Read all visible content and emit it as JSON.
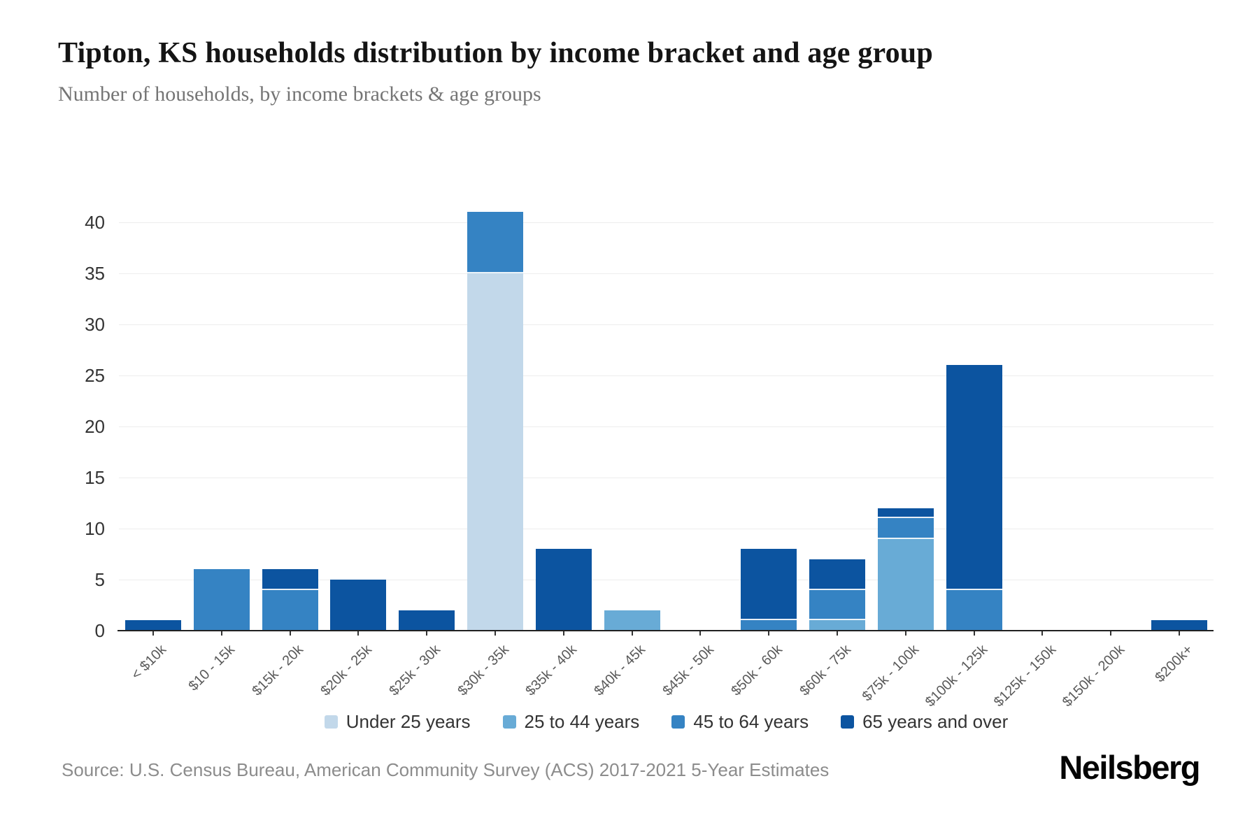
{
  "chart_data": {
    "type": "bar",
    "stacked": true,
    "title": "Tipton, KS households distribution by income bracket and age group",
    "subtitle": "Number of households, by income brackets & age groups",
    "categories": [
      "< $10k",
      "$10 - 15k",
      "$15k - 20k",
      "$20k - 25k",
      "$25k - 30k",
      "$30k - 35k",
      "$35k - 40k",
      "$40k - 45k",
      "$45k - 50k",
      "$50k - 60k",
      "$60k - 75k",
      "$75k - 100k",
      "$100k - 125k",
      "$125k - 150k",
      "$150k - 200k",
      "$200k+"
    ],
    "series": [
      {
        "name": "Under 25 years",
        "color": "#c2d8ea",
        "values": [
          0,
          0,
          0,
          0,
          0,
          35,
          0,
          0,
          0,
          0,
          0,
          0,
          0,
          0,
          0,
          0
        ]
      },
      {
        "name": "25 to 44 years",
        "color": "#68abd6",
        "values": [
          0,
          0,
          0,
          0,
          0,
          0,
          0,
          2,
          0,
          0,
          1,
          9,
          0,
          0,
          0,
          0
        ]
      },
      {
        "name": "45 to 64 years",
        "color": "#3583c3",
        "values": [
          0,
          6,
          4,
          0,
          0,
          6,
          0,
          0,
          0,
          1,
          3,
          2,
          4,
          0,
          0,
          0
        ]
      },
      {
        "name": "65 years and over",
        "color": "#0c54a0",
        "values": [
          1,
          0,
          2,
          5,
          2,
          0,
          8,
          0,
          0,
          7,
          3,
          1,
          22,
          0,
          0,
          1
        ]
      }
    ],
    "xlabel": "",
    "ylabel": "",
    "ylim": [
      0,
      41
    ],
    "yticks": [
      0,
      5,
      10,
      15,
      20,
      25,
      30,
      35,
      40
    ],
    "grid": true,
    "legend_position": "bottom"
  },
  "footer": {
    "source": "Source: U.S. Census Bureau, American Community Survey (ACS) 2017-2021 5-Year Estimates",
    "brand": "Neilsberg"
  }
}
